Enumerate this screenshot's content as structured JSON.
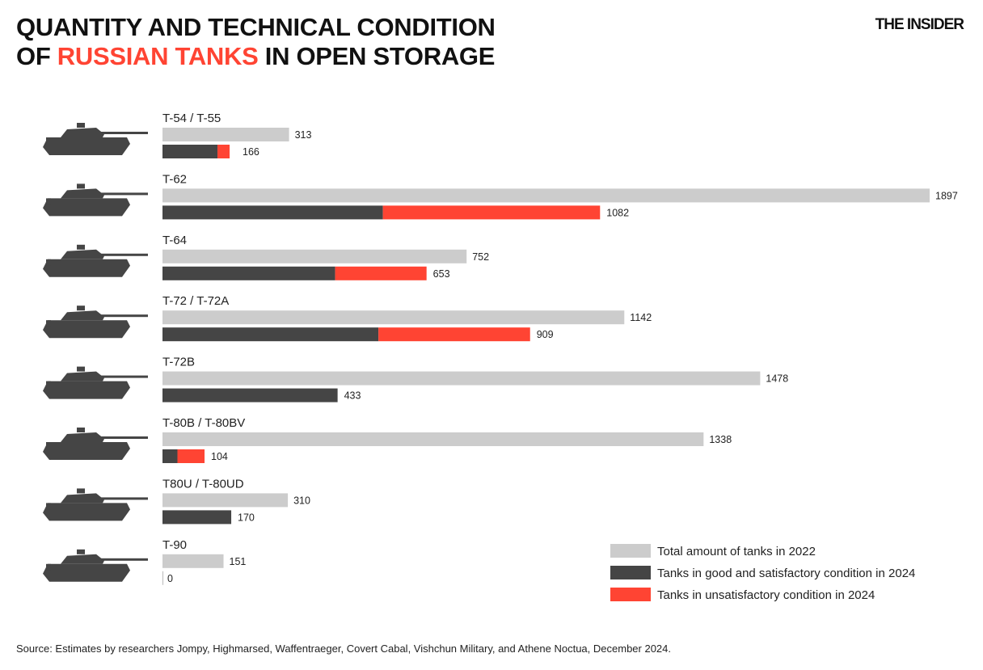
{
  "header": {
    "title_line1": "QUANTITY AND TECHNICAL CONDITION",
    "title_line2_prefix": "OF ",
    "title_line2_accent": "RUSSIAN TANKS",
    "title_line2_suffix": " IN OPEN STORAGE",
    "brand": "THE INSIDER"
  },
  "source": "Source: Estimates by researchers Jompy, Highmarsed, Waffentraeger, Covert Cabal, Vishchun Military, and Athene Noctua, December 2024.",
  "colors": {
    "total": "#cccccc",
    "good": "#454545",
    "bad": "#ff4433",
    "accent": "#ff4433"
  },
  "chart_data": {
    "type": "bar",
    "orientation": "horizontal",
    "categories": [
      "T-54 / T-55",
      "T-62",
      "T-64",
      "T-72 / T-72A",
      "T-72B",
      "T-80B / T-80BV",
      "T80U / T-80UD",
      "T-90"
    ],
    "series": [
      {
        "name": "Total amount of tanks in 2022",
        "values": [
          313,
          1897,
          752,
          1142,
          1478,
          1338,
          310,
          151
        ]
      },
      {
        "name": "Tanks in good and satisfactory condition in 2024",
        "values": [
          136,
          545,
          427,
          534,
          433,
          37,
          170,
          0
        ],
        "stack": "2024"
      },
      {
        "name": "Tanks in unsatisfactory condition in 2024",
        "values": [
          30,
          537,
          226,
          375,
          0,
          67,
          0,
          0
        ],
        "stack": "2024"
      }
    ],
    "labels_2024": [
      166,
      1082,
      653,
      909,
      433,
      104,
      170,
      0
    ],
    "legend": "bottom-right",
    "grid": false,
    "icons": "tank-silhouette"
  }
}
